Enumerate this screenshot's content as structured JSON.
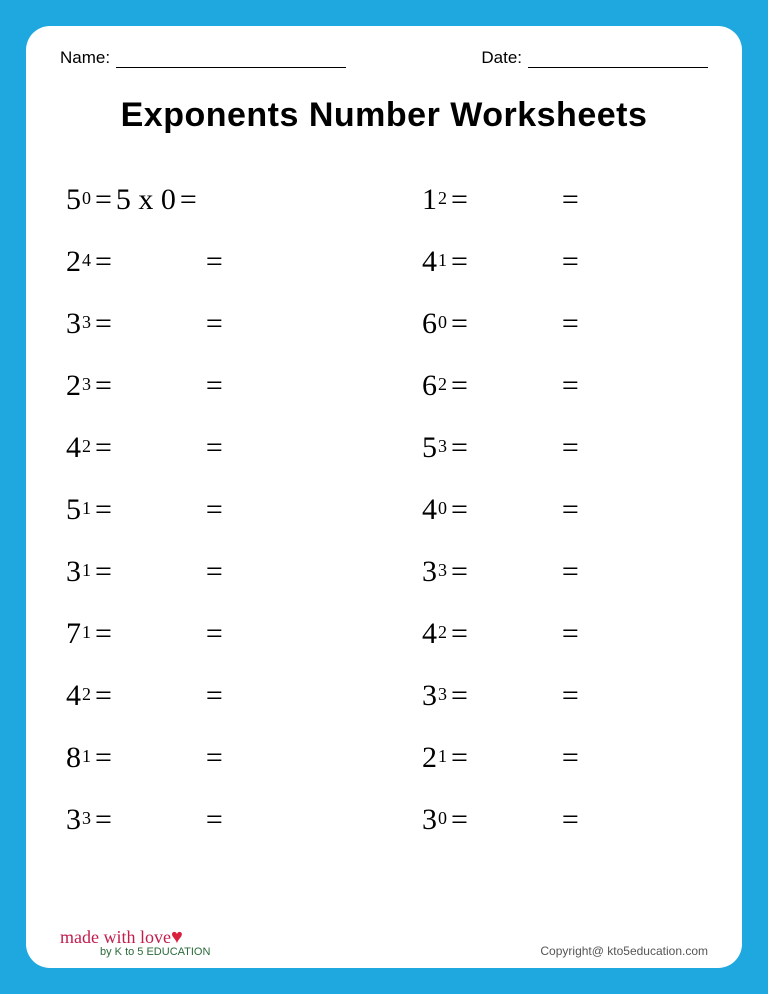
{
  "colors": {
    "page_background": "#1fa8e0",
    "sheet_background": "#ffffff",
    "text": "#000000",
    "logo_script": "#c01c4c",
    "logo_heart": "#d9203c",
    "copyright": "#555555"
  },
  "header": {
    "name_label": "Name:",
    "date_label": "Date:"
  },
  "title": "Exponents Number Worksheets",
  "typography": {
    "title_fontsize": 34,
    "title_weight": 900,
    "problem_fontsize": 30,
    "exponent_fontsize": 18,
    "header_fontsize": 17
  },
  "problems": {
    "left": [
      {
        "base": "5",
        "exp": "0",
        "expansion": "5 x 0"
      },
      {
        "base": "2",
        "exp": "4",
        "expansion": ""
      },
      {
        "base": "3",
        "exp": "3",
        "expansion": ""
      },
      {
        "base": "2",
        "exp": "3",
        "expansion": ""
      },
      {
        "base": "4",
        "exp": "2",
        "expansion": ""
      },
      {
        "base": "5",
        "exp": "1",
        "expansion": ""
      },
      {
        "base": "3",
        "exp": "1",
        "expansion": ""
      },
      {
        "base": "7",
        "exp": "1",
        "expansion": ""
      },
      {
        "base": "4",
        "exp": "2",
        "expansion": ""
      },
      {
        "base": "8",
        "exp": "1",
        "expansion": ""
      },
      {
        "base": "3",
        "exp": "3",
        "expansion": ""
      }
    ],
    "right": [
      {
        "base": "1",
        "exp": "2",
        "expansion": ""
      },
      {
        "base": "4",
        "exp": "1",
        "expansion": ""
      },
      {
        "base": "6",
        "exp": "0",
        "expansion": ""
      },
      {
        "base": "6",
        "exp": "2",
        "expansion": ""
      },
      {
        "base": "5",
        "exp": "3",
        "expansion": ""
      },
      {
        "base": "4",
        "exp": "0",
        "expansion": ""
      },
      {
        "base": "3",
        "exp": "3",
        "expansion": ""
      },
      {
        "base": "4",
        "exp": "2",
        "expansion": ""
      },
      {
        "base": "3",
        "exp": "3",
        "expansion": ""
      },
      {
        "base": "2",
        "exp": "1",
        "expansion": ""
      },
      {
        "base": "3",
        "exp": "0",
        "expansion": ""
      }
    ]
  },
  "footer": {
    "logo_text": "made with",
    "logo_word": "love",
    "logo_by": "by K to 5 EDUCATION",
    "copyright": "Copyright@ kto5education.com"
  }
}
